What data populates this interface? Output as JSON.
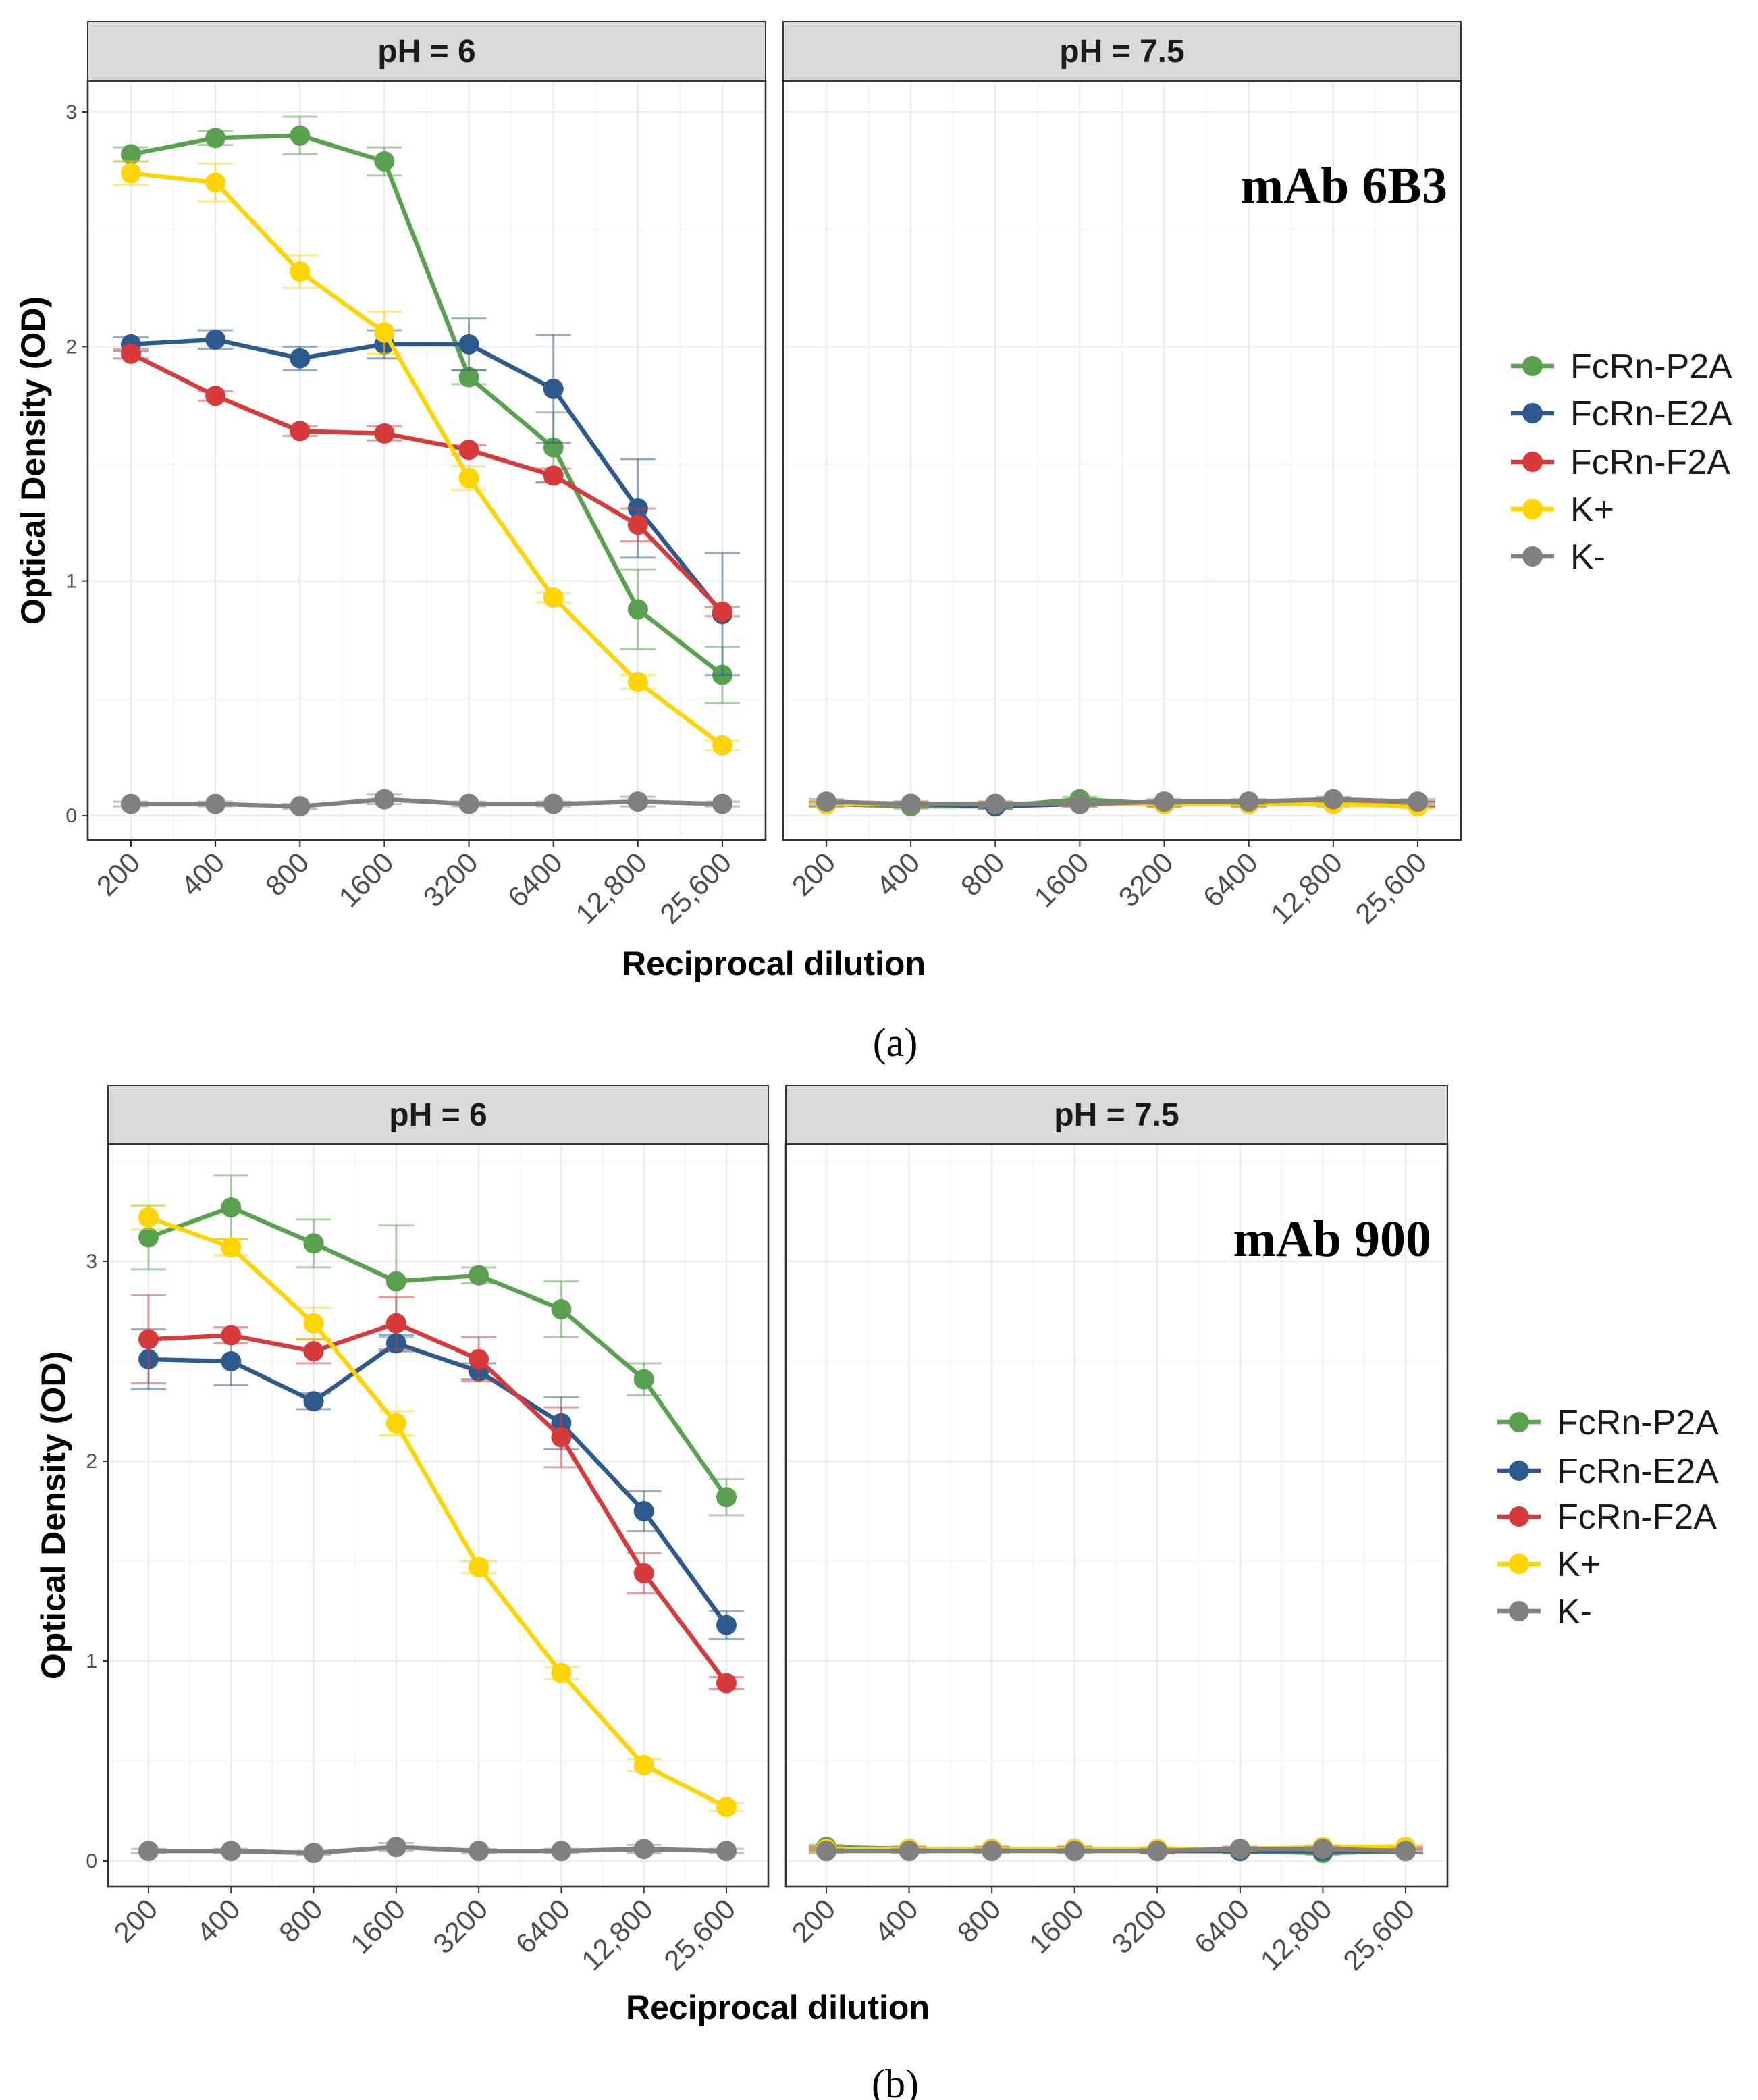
{
  "figures": [
    {
      "panel_label": "(a)",
      "annotation": "mAb 6B3",
      "xlabel": "Reciprocal dilution",
      "ylabel": "Optical Density (OD)"
    },
    {
      "panel_label": "(b)",
      "annotation": "mAb 900",
      "xlabel": "Reciprocal dilution",
      "ylabel": "Optical Density (OD)"
    }
  ],
  "legend": [
    {
      "name": "FcRn-P2A",
      "color": "#59a14f"
    },
    {
      "name": "FcRn-E2A",
      "color": "#2c5a8c"
    },
    {
      "name": "FcRn-F2A",
      "color": "#d63a3a"
    },
    {
      "name": "K+",
      "color": "#ffd400"
    },
    {
      "name": "K-",
      "color": "#808080"
    }
  ],
  "chart_data": [
    {
      "type": "line",
      "facet_strips": [
        "pH = 6",
        "pH = 7.5"
      ],
      "categories": [
        "200",
        "400",
        "800",
        "1600",
        "3200",
        "6400",
        "12,800",
        "25,600"
      ],
      "yticks": [
        0,
        1,
        2,
        3
      ],
      "ylim": [
        -0.1,
        3.15
      ],
      "grid": true,
      "legend_position": "right",
      "facets": [
        {
          "strip": "pH = 6",
          "series": [
            {
              "name": "FcRn-P2A",
              "values": [
                2.82,
                2.89,
                2.9,
                2.79,
                1.87,
                1.57,
                0.88,
                0.6
              ],
              "error": [
                0.03,
                0.03,
                0.08,
                0.06,
                0.03,
                0.15,
                0.17,
                0.12
              ]
            },
            {
              "name": "FcRn-E2A",
              "values": [
                2.01,
                2.03,
                1.95,
                2.01,
                2.01,
                1.82,
                1.31,
                0.86
              ],
              "error": [
                0.03,
                0.04,
                0.05,
                0.06,
                0.11,
                0.23,
                0.21,
                0.26
              ]
            },
            {
              "name": "FcRn-F2A",
              "values": [
                1.97,
                1.79,
                1.64,
                1.63,
                1.56,
                1.45,
                1.24,
                0.87
              ],
              "error": [
                0.02,
                0.02,
                0.02,
                0.03,
                0.02,
                0.03,
                0.07,
                0.02
              ]
            },
            {
              "name": "K+",
              "values": [
                2.74,
                2.7,
                2.32,
                2.06,
                1.44,
                0.93,
                0.57,
                0.3
              ],
              "error": [
                0.05,
                0.08,
                0.07,
                0.09,
                0.05,
                0.02,
                0.03,
                0.02
              ]
            },
            {
              "name": "K-",
              "values": [
                0.05,
                0.05,
                0.04,
                0.07,
                0.05,
                0.05,
                0.06,
                0.05
              ],
              "error": [
                0.01,
                0.01,
                0.01,
                0.02,
                0.01,
                0.01,
                0.02,
                0.01
              ]
            }
          ]
        },
        {
          "strip": "pH = 7.5",
          "series": [
            {
              "name": "FcRn-P2A",
              "values": [
                0.05,
                0.04,
                0.04,
                0.07,
                0.05,
                0.05,
                0.06,
                0.05
              ],
              "error": [
                0.01,
                0.01,
                0.01,
                0.01,
                0.01,
                0.01,
                0.01,
                0.01
              ]
            },
            {
              "name": "FcRn-E2A",
              "values": [
                0.05,
                0.05,
                0.04,
                0.05,
                0.05,
                0.05,
                0.06,
                0.05
              ],
              "error": [
                0.01,
                0.01,
                0.01,
                0.01,
                0.01,
                0.01,
                0.01,
                0.01
              ]
            },
            {
              "name": "FcRn-F2A",
              "values": [
                0.05,
                0.05,
                0.05,
                0.05,
                0.05,
                0.05,
                0.05,
                0.05
              ],
              "error": [
                0.01,
                0.01,
                0.01,
                0.01,
                0.01,
                0.01,
                0.01,
                0.01
              ]
            },
            {
              "name": "K+",
              "values": [
                0.05,
                0.05,
                0.05,
                0.05,
                0.05,
                0.05,
                0.05,
                0.04
              ],
              "error": [
                0.01,
                0.01,
                0.01,
                0.01,
                0.01,
                0.01,
                0.01,
                0.01
              ]
            },
            {
              "name": "K-",
              "values": [
                0.06,
                0.05,
                0.05,
                0.05,
                0.06,
                0.06,
                0.07,
                0.06
              ],
              "error": [
                0.01,
                0.01,
                0.01,
                0.01,
                0.01,
                0.01,
                0.01,
                0.01
              ]
            }
          ]
        }
      ]
    },
    {
      "type": "line",
      "facet_strips": [
        "pH = 6",
        "pH = 7.5"
      ],
      "categories": [
        "200",
        "400",
        "800",
        "1600",
        "3200",
        "6400",
        "12,800",
        "25,600"
      ],
      "yticks": [
        0,
        1,
        2,
        3
      ],
      "ylim": [
        -0.13,
        3.5
      ],
      "grid": true,
      "legend_position": "right",
      "facets": [
        {
          "strip": "pH = 6",
          "series": [
            {
              "name": "FcRn-P2A",
              "values": [
                3.12,
                3.27,
                3.09,
                2.9,
                2.93,
                2.76,
                2.41,
                1.82
              ],
              "error": [
                0.16,
                0.16,
                0.12,
                0.28,
                0.04,
                0.14,
                0.08,
                0.09
              ]
            },
            {
              "name": "FcRn-E2A",
              "values": [
                2.51,
                2.5,
                2.3,
                2.59,
                2.45,
                2.19,
                1.75,
                1.18
              ],
              "error": [
                0.15,
                0.12,
                0.04,
                0.04,
                0.04,
                0.13,
                0.1,
                0.07
              ]
            },
            {
              "name": "FcRn-F2A",
              "values": [
                2.61,
                2.63,
                2.55,
                2.69,
                2.51,
                2.12,
                1.44,
                0.89
              ],
              "error": [
                0.22,
                0.04,
                0.06,
                0.13,
                0.11,
                0.15,
                0.1,
                0.03
              ]
            },
            {
              "name": "K+",
              "values": [
                3.22,
                3.07,
                2.69,
                2.19,
                1.47,
                0.94,
                0.48,
                0.27
              ],
              "error": [
                0.06,
                0.04,
                0.08,
                0.06,
                0.03,
                0.03,
                0.03,
                0.02
              ]
            },
            {
              "name": "K-",
              "values": [
                0.05,
                0.05,
                0.04,
                0.07,
                0.05,
                0.05,
                0.06,
                0.05
              ],
              "error": [
                0.01,
                0.01,
                0.01,
                0.02,
                0.01,
                0.01,
                0.02,
                0.01
              ]
            }
          ]
        },
        {
          "strip": "pH = 7.5",
          "series": [
            {
              "name": "FcRn-P2A",
              "values": [
                0.07,
                0.06,
                0.06,
                0.06,
                0.05,
                0.05,
                0.04,
                0.05
              ],
              "error": [
                0.01,
                0.01,
                0.01,
                0.01,
                0.01,
                0.01,
                0.01,
                0.01
              ]
            },
            {
              "name": "FcRn-E2A",
              "values": [
                0.06,
                0.06,
                0.06,
                0.06,
                0.05,
                0.05,
                0.05,
                0.05
              ],
              "error": [
                0.01,
                0.01,
                0.01,
                0.01,
                0.01,
                0.01,
                0.01,
                0.01
              ]
            },
            {
              "name": "FcRn-F2A",
              "values": [
                0.06,
                0.06,
                0.06,
                0.06,
                0.05,
                0.06,
                0.06,
                0.06
              ],
              "error": [
                0.01,
                0.01,
                0.01,
                0.01,
                0.01,
                0.01,
                0.01,
                0.01
              ]
            },
            {
              "name": "K+",
              "values": [
                0.06,
                0.06,
                0.06,
                0.06,
                0.06,
                0.06,
                0.07,
                0.07
              ],
              "error": [
                0.01,
                0.01,
                0.01,
                0.01,
                0.01,
                0.01,
                0.01,
                0.01
              ]
            },
            {
              "name": "K-",
              "values": [
                0.05,
                0.05,
                0.05,
                0.05,
                0.05,
                0.06,
                0.06,
                0.05
              ],
              "error": [
                0.01,
                0.01,
                0.01,
                0.01,
                0.01,
                0.01,
                0.01,
                0.01
              ]
            }
          ]
        }
      ]
    }
  ]
}
